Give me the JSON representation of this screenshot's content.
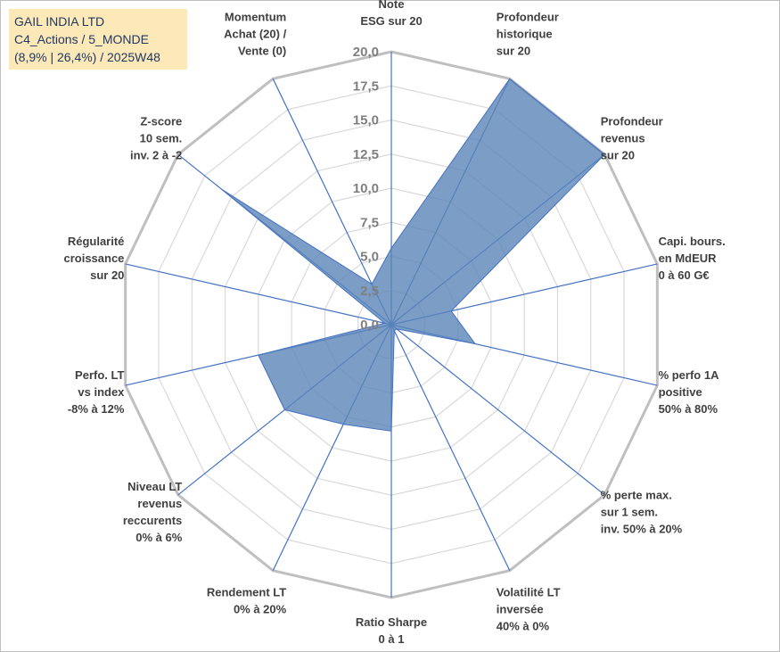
{
  "header": {
    "line1": "GAIL INDIA LTD",
    "line2": "C4_Actions / 5_MONDE",
    "line3": "(8,9% | 26,4%) / 2025W48"
  },
  "colors": {
    "fill": "#5b84b8",
    "stroke": "#4472c4",
    "grid_outer": "#bfbfbf",
    "grid_inner": "#d9d9d9",
    "header_bg": "#fde9b7"
  },
  "chart_data": {
    "type": "radar",
    "rmin": 0,
    "rmax": 20,
    "ticks": [
      "0,0",
      "2,5",
      "5,0",
      "7,5",
      "10,0",
      "12,5",
      "15,0",
      "17,5",
      "20,0"
    ],
    "grid": true,
    "axes": [
      {
        "lines": [
          "Note",
          "ESG sur 20"
        ],
        "value": 5.6
      },
      {
        "lines": [
          "Profondeur",
          "historique",
          "sur 20"
        ],
        "value": 20
      },
      {
        "lines": [
          "Profondeur",
          "revenus",
          "sur 20"
        ],
        "value": 20
      },
      {
        "lines": [
          "Capi. bours.",
          "en MdEUR",
          "0 à 60 G€"
        ],
        "value": 4.5
      },
      {
        "lines": [
          "% perfo 1A",
          "positive",
          "50% à 80%"
        ],
        "value": 6.3
      },
      {
        "lines": [
          "% perte max.",
          "sur 1 sem.",
          "inv. 50% à 20%"
        ],
        "value": 0.5
      },
      {
        "lines": [
          "Volatilité LT",
          "inversée",
          "40% à 0%"
        ],
        "value": 0.5
      },
      {
        "lines": [
          "Ratio Sharpe",
          "0 à 1"
        ],
        "value": 7.8
      },
      {
        "lines": [
          "Rendement LT",
          "0% à 20%"
        ],
        "value": 8.1
      },
      {
        "lines": [
          "Niveau LT",
          "revenus",
          "reccurents",
          "0% à 6%"
        ],
        "value": 10.0
      },
      {
        "lines": [
          "Perfo. LT",
          "vs index",
          "-8% à 12%"
        ],
        "value": 10.0
      },
      {
        "lines": [
          "Régularité",
          "croissance",
          "sur 20"
        ],
        "value": 0.5
      },
      {
        "lines": [
          "Z-score",
          "10 sem.",
          "inv. 2 à -2"
        ],
        "value": 15.9
      },
      {
        "lines": [
          "Momentum",
          "Achat (20) /",
          "Vente (0)"
        ],
        "value": 3.3
      }
    ]
  }
}
